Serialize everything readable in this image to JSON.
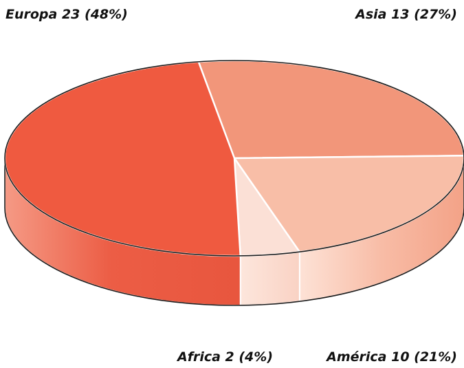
{
  "chart_data": {
    "type": "pie",
    "style": "3d",
    "slices": [
      {
        "name": "Europa",
        "value": 23,
        "percent": 48,
        "label": "Europa 23  (48%)",
        "color": "#ef5a40"
      },
      {
        "name": "Asia",
        "value": 13,
        "percent": 27,
        "label": "Asia 13  (27%)",
        "color": "#f2967a"
      },
      {
        "name": "América",
        "value": 10,
        "percent": 21,
        "label": "América 10  (21%)",
        "color": "#f8bea7"
      },
      {
        "name": "Africa",
        "value": 2,
        "percent": 4,
        "label": "Africa 2  (4%)",
        "color": "#fbe0d6"
      }
    ]
  }
}
